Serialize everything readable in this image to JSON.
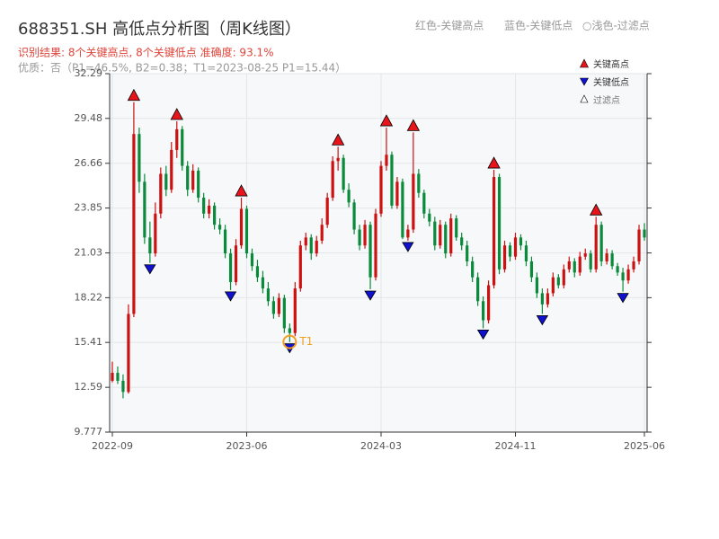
{
  "chart_data": {
    "type": "candlestick",
    "title": "688351.SH 高低点分析图（周K线图）",
    "subtitle": "识别结果: 8个关键高点, 8个关键低点  准确度: 93.1%",
    "quality_note": "优质：否（P1=46.5%, B2=0.38；T1=2023-08-25 P1=15.44）",
    "top_legend": [
      "红色-关键高点",
      "蓝色-关键低点",
      "○浅色-过滤点"
    ],
    "up_color": "#cc1111",
    "down_color": "#0b8a3c",
    "grid": true,
    "ylim": [
      9.777,
      32.29
    ],
    "yticks": [
      9.777,
      12.59,
      15.41,
      18.22,
      21.03,
      23.85,
      26.66,
      29.48,
      32.29
    ],
    "xlim": [
      -0.5,
      99.5
    ],
    "xticks": [
      {
        "value": 0,
        "label": "2022-09"
      },
      {
        "value": 25,
        "label": "2023-06"
      },
      {
        "value": 50,
        "label": "2024-03"
      },
      {
        "value": 75,
        "label": "2024-11"
      },
      {
        "value": 99,
        "label": "2025-06"
      }
    ],
    "candles": [
      [
        13.0,
        14.2,
        12.9,
        13.5
      ],
      [
        13.5,
        13.9,
        12.8,
        13.0
      ],
      [
        13.0,
        13.4,
        11.9,
        12.3
      ],
      [
        12.3,
        17.8,
        12.2,
        17.2
      ],
      [
        17.2,
        30.5,
        17.0,
        28.5
      ],
      [
        28.5,
        28.9,
        24.8,
        25.5
      ],
      [
        25.5,
        26.0,
        21.6,
        22.0
      ],
      [
        22.0,
        23.0,
        20.4,
        21.0
      ],
      [
        21.0,
        24.2,
        20.8,
        23.5
      ],
      [
        23.5,
        26.4,
        23.2,
        26.0
      ],
      [
        26.0,
        26.5,
        24.6,
        25.0
      ],
      [
        25.0,
        28.0,
        24.8,
        27.5
      ],
      [
        27.5,
        29.3,
        27.0,
        28.8
      ],
      [
        28.8,
        29.0,
        26.2,
        26.5
      ],
      [
        26.5,
        26.8,
        24.6,
        25.0
      ],
      [
        25.0,
        26.6,
        24.8,
        26.2
      ],
      [
        26.2,
        26.4,
        24.2,
        24.5
      ],
      [
        24.5,
        24.8,
        23.2,
        23.5
      ],
      [
        23.5,
        24.4,
        23.2,
        24.0
      ],
      [
        24.0,
        24.2,
        22.5,
        22.8
      ],
      [
        22.8,
        23.2,
        22.2,
        22.5
      ],
      [
        22.5,
        22.8,
        20.7,
        21.0
      ],
      [
        21.0,
        21.3,
        18.7,
        19.2
      ],
      [
        19.2,
        21.9,
        19.0,
        21.5
      ],
      [
        21.5,
        24.5,
        21.3,
        23.8
      ],
      [
        23.8,
        24.0,
        20.7,
        21.0
      ],
      [
        21.0,
        21.3,
        19.9,
        20.2
      ],
      [
        20.2,
        20.6,
        19.2,
        19.5
      ],
      [
        19.5,
        19.9,
        18.5,
        18.8
      ],
      [
        18.8,
        19.2,
        17.7,
        18.0
      ],
      [
        18.0,
        18.3,
        16.9,
        17.2
      ],
      [
        17.2,
        18.5,
        17.0,
        18.2
      ],
      [
        18.2,
        18.4,
        16.0,
        16.3
      ],
      [
        16.3,
        16.6,
        15.44,
        16.0
      ],
      [
        16.0,
        19.2,
        15.8,
        18.8
      ],
      [
        18.8,
        21.8,
        18.6,
        21.5
      ],
      [
        21.5,
        22.3,
        21.2,
        22.0
      ],
      [
        22.0,
        22.2,
        20.6,
        21.0
      ],
      [
        21.0,
        22.1,
        20.8,
        21.8
      ],
      [
        21.8,
        23.2,
        21.6,
        22.8
      ],
      [
        22.8,
        24.8,
        22.6,
        24.5
      ],
      [
        24.5,
        27.1,
        24.3,
        26.8
      ],
      [
        26.8,
        27.7,
        26.2,
        27.0
      ],
      [
        27.0,
        27.2,
        24.8,
        25.0
      ],
      [
        25.0,
        25.4,
        23.9,
        24.2
      ],
      [
        24.2,
        24.4,
        22.2,
        22.5
      ],
      [
        22.5,
        22.8,
        21.2,
        21.5
      ],
      [
        21.5,
        23.1,
        21.3,
        22.8
      ],
      [
        22.8,
        23.0,
        18.75,
        19.5
      ],
      [
        19.5,
        23.8,
        19.3,
        23.5
      ],
      [
        23.5,
        26.8,
        23.3,
        26.5
      ],
      [
        26.5,
        28.9,
        26.2,
        27.2
      ],
      [
        27.2,
        27.4,
        23.8,
        24.0
      ],
      [
        24.0,
        25.8,
        23.8,
        25.5
      ],
      [
        25.5,
        25.7,
        21.9,
        22.0
      ],
      [
        22.0,
        22.8,
        21.8,
        22.5
      ],
      [
        22.5,
        28.6,
        22.3,
        26.0
      ],
      [
        26.0,
        26.3,
        24.5,
        24.8
      ],
      [
        24.8,
        25.0,
        23.2,
        23.5
      ],
      [
        23.5,
        23.8,
        22.7,
        23.0
      ],
      [
        23.0,
        23.3,
        21.2,
        21.5
      ],
      [
        21.5,
        23.1,
        21.3,
        22.8
      ],
      [
        22.8,
        23.0,
        20.7,
        21.0
      ],
      [
        21.0,
        23.5,
        20.8,
        23.2
      ],
      [
        23.2,
        23.4,
        21.8,
        22.0
      ],
      [
        22.0,
        22.3,
        21.2,
        21.5
      ],
      [
        21.5,
        21.8,
        20.2,
        20.5
      ],
      [
        20.5,
        20.8,
        19.2,
        19.5
      ],
      [
        19.5,
        19.8,
        17.7,
        18.0
      ],
      [
        18.0,
        18.3,
        16.3,
        16.8
      ],
      [
        16.8,
        19.3,
        16.6,
        19.0
      ],
      [
        19.0,
        26.25,
        18.8,
        25.8
      ],
      [
        25.8,
        26.0,
        19.7,
        20.0
      ],
      [
        20.0,
        21.8,
        19.8,
        21.5
      ],
      [
        21.5,
        21.7,
        20.5,
        20.8
      ],
      [
        20.8,
        22.3,
        20.6,
        22.0
      ],
      [
        22.0,
        22.2,
        21.2,
        21.5
      ],
      [
        21.5,
        21.8,
        20.2,
        20.5
      ],
      [
        20.5,
        20.8,
        19.2,
        19.5
      ],
      [
        19.5,
        19.8,
        18.2,
        18.5
      ],
      [
        18.5,
        18.8,
        17.2,
        17.8
      ],
      [
        17.8,
        18.8,
        17.6,
        18.5
      ],
      [
        18.5,
        19.8,
        18.3,
        19.5
      ],
      [
        19.5,
        19.7,
        18.8,
        19.0
      ],
      [
        19.0,
        20.3,
        18.8,
        20.0
      ],
      [
        20.0,
        20.8,
        19.8,
        20.5
      ],
      [
        20.5,
        20.7,
        19.5,
        19.8
      ],
      [
        19.8,
        21.1,
        19.6,
        20.8
      ],
      [
        20.8,
        21.3,
        20.6,
        21.0
      ],
      [
        21.0,
        21.2,
        19.8,
        20.0
      ],
      [
        20.0,
        23.3,
        19.8,
        22.8
      ],
      [
        22.8,
        23.0,
        20.2,
        20.5
      ],
      [
        20.5,
        21.3,
        20.3,
        21.0
      ],
      [
        21.0,
        21.2,
        20.0,
        20.2
      ],
      [
        20.2,
        20.4,
        19.6,
        19.8
      ],
      [
        19.8,
        20.1,
        18.6,
        19.3
      ],
      [
        19.3,
        20.3,
        19.1,
        20.0
      ],
      [
        20.0,
        20.8,
        19.8,
        20.5
      ],
      [
        20.5,
        22.8,
        20.3,
        22.5
      ],
      [
        22.5,
        22.9,
        21.8,
        22.0
      ]
    ],
    "key_highs": {
      "name": "关键高点",
      "color": "#e8141c",
      "x": [
        4,
        12,
        24,
        42,
        51,
        56,
        71,
        90
      ],
      "values": [
        30.5,
        29.3,
        24.5,
        27.7,
        28.9,
        28.6,
        26.25,
        23.3
      ]
    },
    "key_lows": {
      "name": "关键低点",
      "color": "#1010d0",
      "x": [
        7,
        22,
        33,
        48,
        55,
        69,
        80,
        95
      ],
      "values": [
        20.4,
        18.7,
        15.44,
        18.75,
        21.8,
        16.3,
        17.2,
        18.6
      ]
    },
    "filtered_points": {
      "name": "过滤点",
      "color": "#ffffff"
    },
    "annotation": {
      "text": "T1",
      "x": 33,
      "value": 15.44,
      "color": "#f0a020"
    }
  }
}
